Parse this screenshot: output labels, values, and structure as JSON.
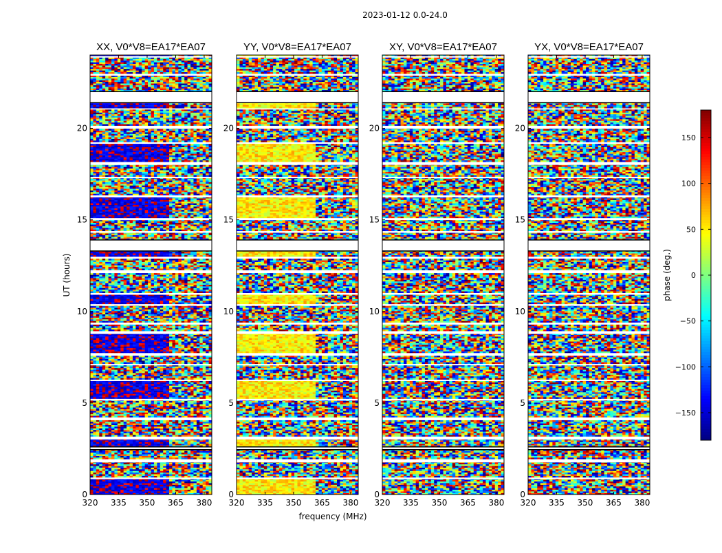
{
  "chart_data": {
    "type": "heatmap",
    "suptitle": "2023-01-12 0.0-24.0",
    "xlabel": "frequency (MHz)",
    "ylabel": "UT (hours)",
    "xlim": [
      320,
      384
    ],
    "ylim": [
      0,
      24
    ],
    "xticks": [
      320,
      335,
      350,
      365,
      380
    ],
    "yticks": [
      0,
      5,
      10,
      15,
      20
    ],
    "panels": [
      {
        "title": "XX, V0*V8=EA17*EA07",
        "bias": "blue"
      },
      {
        "title": "YY, V0*V8=EA17*EA07",
        "bias": "yellow"
      },
      {
        "title": "XY, V0*V8=EA17*EA07",
        "bias": "none"
      },
      {
        "title": "YX, V0*V8=EA17*EA07",
        "bias": "none"
      }
    ],
    "colorbar": {
      "label": "phase (deg.)",
      "range": [
        -180,
        180
      ],
      "ticks": [
        -150,
        -100,
        -50,
        0,
        50,
        100,
        150
      ],
      "tick_labels": [
        "−150",
        "−100",
        "−50",
        "0",
        "50",
        "100",
        "150"
      ],
      "colormap": "jet"
    },
    "data_gaps_ut": [
      [
        2.45,
        2.6
      ],
      [
        13.3,
        13.9
      ],
      [
        21.4,
        22.0
      ]
    ]
  }
}
